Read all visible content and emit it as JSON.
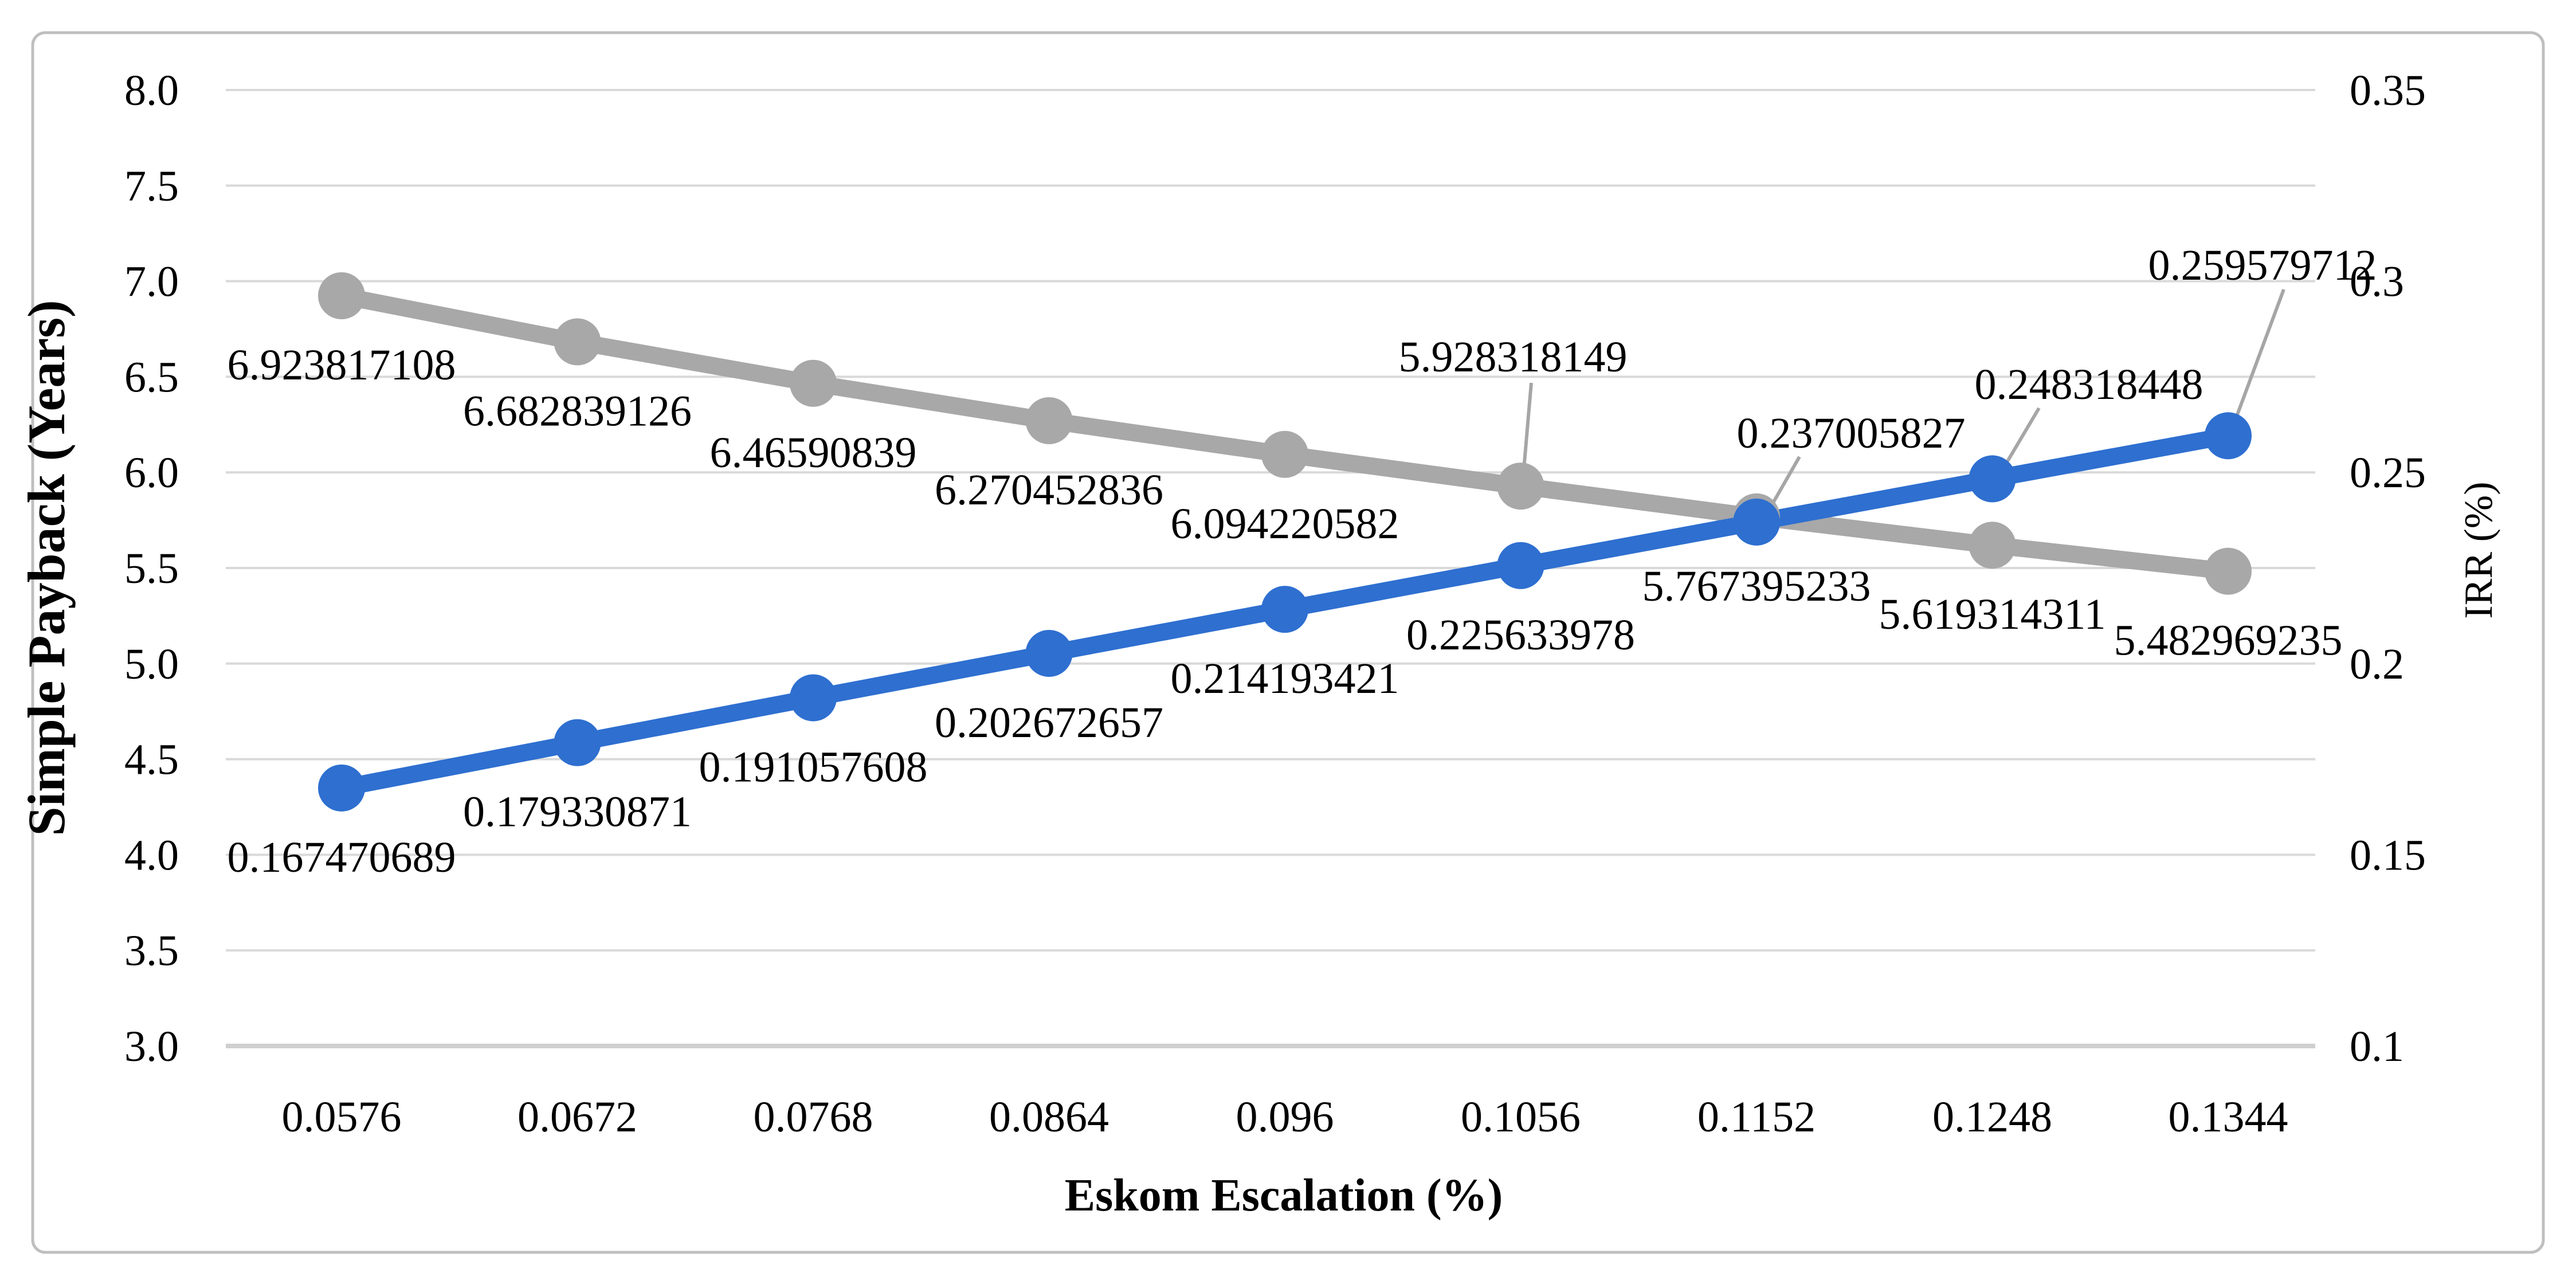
{
  "chart_data": {
    "type": "line",
    "title": "",
    "legend": "none",
    "gridlines": true,
    "x_axis": {
      "label": "Eskom Escalation (%)",
      "categories": [
        "0.0576",
        "0.0672",
        "0.0768",
        "0.0864",
        "0.096",
        "0.1056",
        "0.1152",
        "0.1248",
        "0.1344"
      ]
    },
    "y_axis_left": {
      "label": "Simple Payback (Years)",
      "min": 3.0,
      "max": 8.0,
      "ticks": [
        "8.0",
        "7.5",
        "7.0",
        "6.5",
        "6.0",
        "5.5",
        "5.0",
        "4.5",
        "4.0",
        "3.5",
        "3.0"
      ]
    },
    "y_axis_right": {
      "label": "IRR (%)",
      "min": 0.1,
      "max": 0.35,
      "ticks": [
        "0.35",
        "0.3",
        "0.25",
        "0.2",
        "0.15",
        "0.1"
      ]
    },
    "series": [
      {
        "name": "Simple Payback",
        "axis": "left",
        "color": "#a8a8a8",
        "values": [
          6.923817108,
          6.682839126,
          6.46590839,
          6.270452836,
          6.094220582,
          5.928318149,
          5.767395233,
          5.619314311,
          5.482969235
        ],
        "labels": [
          "6.923817108",
          "6.682839126",
          "6.46590839",
          "6.270452836",
          "6.094220582",
          "5.928318149",
          "5.767395233",
          "5.619314311",
          "5.482969235"
        ],
        "label_placement": [
          "below",
          "below",
          "below",
          "below",
          "below",
          "above",
          "below",
          "below",
          "below"
        ]
      },
      {
        "name": "IRR",
        "axis": "right",
        "color": "#2e6fd0",
        "values": [
          0.167470689,
          0.179330871,
          0.191057608,
          0.202672657,
          0.214193421,
          0.225633978,
          0.237005827,
          0.248318448,
          0.259579712
        ],
        "labels": [
          "0.167470689",
          "0.179330871",
          "0.191057608",
          "0.202672657",
          "0.214193421",
          "0.225633978",
          "0.237005827",
          "0.248318448",
          "0.259579712"
        ],
        "label_placement": [
          "below",
          "below",
          "below",
          "below",
          "below",
          "below",
          "above",
          "above",
          "above"
        ]
      }
    ]
  },
  "style": {
    "gridline_color": "#d9d9d9",
    "bottom_axis_color": "#cfcfcf",
    "leader_line_color": "#a6a6a6",
    "border_color": "#bfbfbf",
    "background": "#ffffff",
    "text_color": "#000000"
  }
}
